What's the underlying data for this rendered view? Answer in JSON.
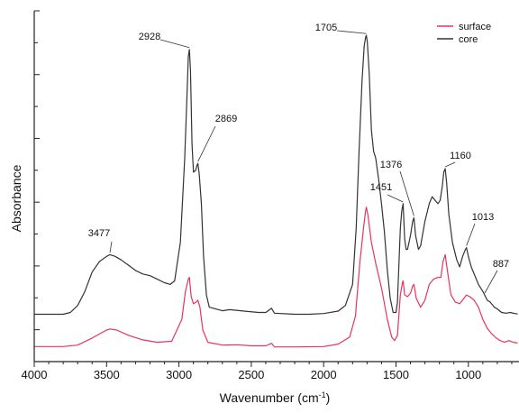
{
  "chart_data": {
    "type": "line",
    "xlabel": "Wavenumber (cm",
    "xlabel_sup": "-1",
    "xlabel_end": ")",
    "ylabel": "Absorbance",
    "xlim": [
      4000,
      650
    ],
    "ylim": [
      0,
      1
    ],
    "x_ticks": [
      4000,
      3500,
      3000,
      2500,
      2000,
      1500,
      1000
    ],
    "x_tick_labels": [
      "4000",
      "3500",
      "3000",
      "2500",
      "2000",
      "1500",
      "1000"
    ],
    "y_tick_labels_shown": false,
    "grid": false,
    "legend_position": "top-right",
    "series": [
      {
        "name": "surface",
        "color": "#e8335f",
        "points": [
          [
            4000,
            0.043
          ],
          [
            3800,
            0.043
          ],
          [
            3700,
            0.047
          ],
          [
            3600,
            0.067
          ],
          [
            3500,
            0.09
          ],
          [
            3477,
            0.093
          ],
          [
            3430,
            0.09
          ],
          [
            3350,
            0.075
          ],
          [
            3250,
            0.062
          ],
          [
            3150,
            0.055
          ],
          [
            3050,
            0.058
          ],
          [
            2980,
            0.12
          ],
          [
            2955,
            0.2
          ],
          [
            2935,
            0.235
          ],
          [
            2928,
            0.24
          ],
          [
            2915,
            0.185
          ],
          [
            2900,
            0.165
          ],
          [
            2880,
            0.17
          ],
          [
            2869,
            0.175
          ],
          [
            2855,
            0.155
          ],
          [
            2835,
            0.09
          ],
          [
            2800,
            0.055
          ],
          [
            2700,
            0.047
          ],
          [
            2600,
            0.048
          ],
          [
            2500,
            0.045
          ],
          [
            2400,
            0.045
          ],
          [
            2360,
            0.052
          ],
          [
            2340,
            0.042
          ],
          [
            2200,
            0.042
          ],
          [
            2000,
            0.043
          ],
          [
            1900,
            0.05
          ],
          [
            1820,
            0.07
          ],
          [
            1780,
            0.13
          ],
          [
            1750,
            0.28
          ],
          [
            1725,
            0.38
          ],
          [
            1710,
            0.43
          ],
          [
            1705,
            0.44
          ],
          [
            1695,
            0.42
          ],
          [
            1670,
            0.34
          ],
          [
            1640,
            0.28
          ],
          [
            1600,
            0.21
          ],
          [
            1560,
            0.12
          ],
          [
            1530,
            0.07
          ],
          [
            1510,
            0.06
          ],
          [
            1490,
            0.075
          ],
          [
            1470,
            0.19
          ],
          [
            1455,
            0.225
          ],
          [
            1451,
            0.23
          ],
          [
            1440,
            0.19
          ],
          [
            1420,
            0.185
          ],
          [
            1400,
            0.195
          ],
          [
            1385,
            0.215
          ],
          [
            1376,
            0.22
          ],
          [
            1360,
            0.18
          ],
          [
            1330,
            0.155
          ],
          [
            1300,
            0.175
          ],
          [
            1270,
            0.22
          ],
          [
            1240,
            0.235
          ],
          [
            1210,
            0.24
          ],
          [
            1190,
            0.24
          ],
          [
            1175,
            0.285
          ],
          [
            1160,
            0.305
          ],
          [
            1145,
            0.26
          ],
          [
            1120,
            0.19
          ],
          [
            1090,
            0.17
          ],
          [
            1060,
            0.165
          ],
          [
            1040,
            0.175
          ],
          [
            1013,
            0.19
          ],
          [
            990,
            0.185
          ],
          [
            960,
            0.175
          ],
          [
            930,
            0.155
          ],
          [
            900,
            0.12
          ],
          [
            887,
            0.11
          ],
          [
            870,
            0.095
          ],
          [
            840,
            0.08
          ],
          [
            810,
            0.068
          ],
          [
            780,
            0.06
          ],
          [
            750,
            0.055
          ],
          [
            720,
            0.06
          ],
          [
            690,
            0.055
          ],
          [
            660,
            0.053
          ]
        ]
      },
      {
        "name": "core",
        "color": "#333333",
        "points": [
          [
            4000,
            0.135
          ],
          [
            3800,
            0.135
          ],
          [
            3750,
            0.14
          ],
          [
            3700,
            0.16
          ],
          [
            3650,
            0.2
          ],
          [
            3600,
            0.255
          ],
          [
            3550,
            0.285
          ],
          [
            3500,
            0.3
          ],
          [
            3477,
            0.305
          ],
          [
            3440,
            0.3
          ],
          [
            3400,
            0.29
          ],
          [
            3350,
            0.275
          ],
          [
            3300,
            0.26
          ],
          [
            3250,
            0.25
          ],
          [
            3200,
            0.245
          ],
          [
            3150,
            0.235
          ],
          [
            3100,
            0.225
          ],
          [
            3060,
            0.22
          ],
          [
            3030,
            0.23
          ],
          [
            2990,
            0.34
          ],
          [
            2960,
            0.58
          ],
          [
            2945,
            0.75
          ],
          [
            2935,
            0.87
          ],
          [
            2928,
            0.89
          ],
          [
            2920,
            0.83
          ],
          [
            2910,
            0.62
          ],
          [
            2900,
            0.54
          ],
          [
            2885,
            0.545
          ],
          [
            2875,
            0.56
          ],
          [
            2869,
            0.565
          ],
          [
            2860,
            0.535
          ],
          [
            2845,
            0.45
          ],
          [
            2830,
            0.3
          ],
          [
            2810,
            0.19
          ],
          [
            2790,
            0.155
          ],
          [
            2700,
            0.145
          ],
          [
            2650,
            0.148
          ],
          [
            2550,
            0.144
          ],
          [
            2450,
            0.14
          ],
          [
            2400,
            0.14
          ],
          [
            2360,
            0.152
          ],
          [
            2340,
            0.138
          ],
          [
            2200,
            0.135
          ],
          [
            2100,
            0.135
          ],
          [
            2000,
            0.137
          ],
          [
            1900,
            0.144
          ],
          [
            1850,
            0.16
          ],
          [
            1800,
            0.22
          ],
          [
            1775,
            0.38
          ],
          [
            1755,
            0.6
          ],
          [
            1735,
            0.8
          ],
          [
            1720,
            0.9
          ],
          [
            1710,
            0.925
          ],
          [
            1705,
            0.93
          ],
          [
            1698,
            0.91
          ],
          [
            1685,
            0.82
          ],
          [
            1670,
            0.66
          ],
          [
            1655,
            0.6
          ],
          [
            1640,
            0.58
          ],
          [
            1620,
            0.52
          ],
          [
            1600,
            0.45
          ],
          [
            1580,
            0.37
          ],
          [
            1560,
            0.26
          ],
          [
            1540,
            0.18
          ],
          [
            1520,
            0.14
          ],
          [
            1500,
            0.14
          ],
          [
            1490,
            0.17
          ],
          [
            1470,
            0.38
          ],
          [
            1460,
            0.43
          ],
          [
            1451,
            0.45
          ],
          [
            1440,
            0.35
          ],
          [
            1430,
            0.32
          ],
          [
            1420,
            0.32
          ],
          [
            1400,
            0.36
          ],
          [
            1385,
            0.4
          ],
          [
            1376,
            0.41
          ],
          [
            1365,
            0.36
          ],
          [
            1345,
            0.32
          ],
          [
            1330,
            0.33
          ],
          [
            1300,
            0.4
          ],
          [
            1270,
            0.45
          ],
          [
            1250,
            0.47
          ],
          [
            1230,
            0.46
          ],
          [
            1210,
            0.45
          ],
          [
            1195,
            0.46
          ],
          [
            1180,
            0.5
          ],
          [
            1170,
            0.54
          ],
          [
            1160,
            0.55
          ],
          [
            1150,
            0.51
          ],
          [
            1135,
            0.42
          ],
          [
            1110,
            0.34
          ],
          [
            1080,
            0.29
          ],
          [
            1060,
            0.27
          ],
          [
            1040,
            0.3
          ],
          [
            1020,
            0.32
          ],
          [
            1013,
            0.325
          ],
          [
            1000,
            0.3
          ],
          [
            980,
            0.27
          ],
          [
            950,
            0.24
          ],
          [
            930,
            0.22
          ],
          [
            900,
            0.2
          ],
          [
            887,
            0.19
          ],
          [
            870,
            0.175
          ],
          [
            850,
            0.17
          ],
          [
            820,
            0.155
          ],
          [
            800,
            0.15
          ],
          [
            770,
            0.14
          ],
          [
            740,
            0.138
          ],
          [
            710,
            0.14
          ],
          [
            680,
            0.137
          ],
          [
            660,
            0.136
          ]
        ]
      }
    ],
    "annotations": [
      {
        "label": "3477",
        "wavenumber": 3477,
        "series": "core"
      },
      {
        "label": "2928",
        "wavenumber": 2928,
        "series": "core"
      },
      {
        "label": "2869",
        "wavenumber": 2869,
        "series": "core"
      },
      {
        "label": "1705",
        "wavenumber": 1705,
        "series": "core"
      },
      {
        "label": "1451",
        "wavenumber": 1451,
        "series": "core"
      },
      {
        "label": "1376",
        "wavenumber": 1376,
        "series": "core"
      },
      {
        "label": "1160",
        "wavenumber": 1160,
        "series": "core"
      },
      {
        "label": "1013",
        "wavenumber": 1013,
        "series": "core"
      },
      {
        "label": "887",
        "wavenumber": 887,
        "series": "core"
      }
    ]
  }
}
